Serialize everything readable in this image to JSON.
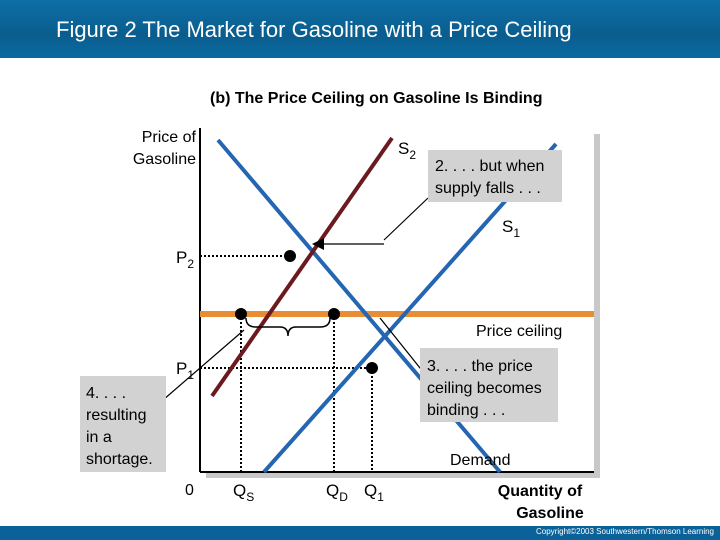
{
  "slide": {
    "title": "Figure 2 The Market for Gasoline with a Price Ceiling",
    "subtitle": "(b) The Price Ceiling on Gasoline Is Binding",
    "copyright": "Copyright©2003  Southwestern/Thomson Learning"
  },
  "axes": {
    "y_label_line1": "Price of",
    "y_label_line2": "Gasoline",
    "x_label_line1": "Quantity of",
    "x_label_line2": "Gasoline",
    "origin": "0"
  },
  "curves": {
    "supply2": {
      "letter": "S",
      "sub": "2",
      "color": "#6b1a1f"
    },
    "supply1": {
      "letter": "S",
      "sub": "1",
      "color": "#2466b2"
    },
    "demand": {
      "label": "Demand",
      "color": "#2466b2"
    },
    "ceiling": {
      "label": "Price ceiling",
      "color": "#e88d33"
    }
  },
  "prices": {
    "p2": {
      "letter": "P",
      "sub": "2"
    },
    "p1": {
      "letter": "P",
      "sub": "1"
    }
  },
  "quantities": {
    "qs": {
      "letter": "Q",
      "sub": "S"
    },
    "qd": {
      "letter": "Q",
      "sub": "D"
    },
    "q1": {
      "letter": "Q",
      "sub": "1"
    }
  },
  "annotations": {
    "note2_line1": "2. . . . but when",
    "note2_line2": "supply falls . . .",
    "note3_line1": "3. . . . the price",
    "note3_line2": "ceiling becomes",
    "note3_line3": "binding . . .",
    "note4_line1": "4. . . .",
    "note4_line2": "resulting",
    "note4_line3": "in a",
    "note4_line4": "shortage."
  }
}
